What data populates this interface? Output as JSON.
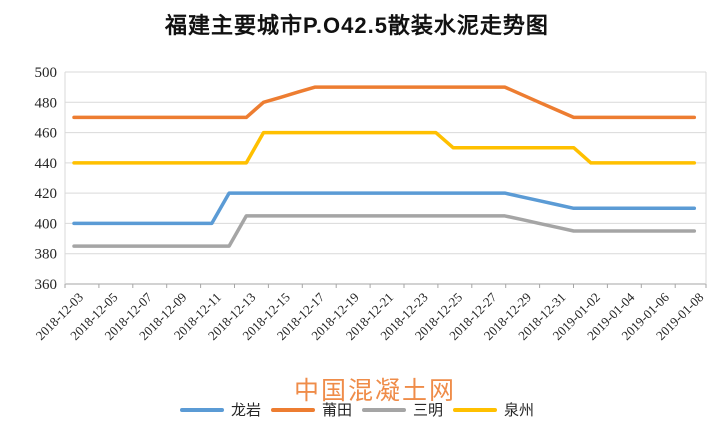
{
  "title": "福建主要城市P.O42.5散装水泥走势图",
  "watermark": "中国混凝土网",
  "chart_data": {
    "type": "line",
    "title": "福建主要城市P.O42.5散装水泥走势图",
    "xlabel": "",
    "ylabel": "",
    "ylim": [
      360,
      500
    ],
    "ytick_step": 20,
    "grid": "horizontal",
    "legend_position": "bottom",
    "x_labels": [
      "2018-12-03",
      "2018-12-05",
      "2018-12-07",
      "2018-12-09",
      "2018-12-11",
      "2018-12-13",
      "2018-12-15",
      "2018-12-17",
      "2018-12-19",
      "2018-12-21",
      "2018-12-23",
      "2018-12-25",
      "2018-12-27",
      "2018-12-29",
      "2018-12-31",
      "2019-01-02",
      "2019-01-04",
      "2019-01-06",
      "2019-01-08"
    ],
    "dates": [
      "2018-12-03",
      "2018-12-04",
      "2018-12-05",
      "2018-12-06",
      "2018-12-07",
      "2018-12-08",
      "2018-12-09",
      "2018-12-10",
      "2018-12-11",
      "2018-12-12",
      "2018-12-13",
      "2018-12-14",
      "2018-12-15",
      "2018-12-16",
      "2018-12-17",
      "2018-12-18",
      "2018-12-19",
      "2018-12-20",
      "2018-12-21",
      "2018-12-22",
      "2018-12-23",
      "2018-12-24",
      "2018-12-25",
      "2018-12-26",
      "2018-12-27",
      "2018-12-28",
      "2018-12-29",
      "2018-12-30",
      "2018-12-31",
      "2019-01-01",
      "2019-01-02",
      "2019-01-03",
      "2019-01-04",
      "2019-01-05",
      "2019-01-06",
      "2019-01-07",
      "2019-01-08"
    ],
    "series": [
      {
        "name": "龙岩",
        "color": "#5B9BD5",
        "values": [
          400,
          400,
          400,
          400,
          400,
          400,
          400,
          400,
          400,
          420,
          420,
          420,
          420,
          420,
          420,
          420,
          420,
          420,
          420,
          420,
          420,
          420,
          420,
          420,
          420,
          420,
          417.5,
          415,
          412.5,
          410,
          410,
          410,
          410,
          410,
          410,
          410,
          410
        ]
      },
      {
        "name": "莆田",
        "color": "#ED7D31",
        "values": [
          470,
          470,
          470,
          470,
          470,
          470,
          470,
          470,
          470,
          470,
          470,
          480,
          483.3,
          486.7,
          490,
          490,
          490,
          490,
          490,
          490,
          490,
          490,
          490,
          490,
          490,
          490,
          485,
          480,
          475,
          470,
          470,
          470,
          470,
          470,
          470,
          470,
          470
        ]
      },
      {
        "name": "三明",
        "color": "#A5A5A5",
        "values": [
          385,
          385,
          385,
          385,
          385,
          385,
          385,
          385,
          385,
          385,
          405,
          405,
          405,
          405,
          405,
          405,
          405,
          405,
          405,
          405,
          405,
          405,
          405,
          405,
          405,
          405,
          402.5,
          400,
          397.5,
          395,
          395,
          395,
          395,
          395,
          395,
          395,
          395
        ]
      },
      {
        "name": "泉州",
        "color": "#FFC000",
        "values": [
          440,
          440,
          440,
          440,
          440,
          440,
          440,
          440,
          440,
          440,
          440,
          460,
          460,
          460,
          460,
          460,
          460,
          460,
          460,
          460,
          460,
          460,
          450,
          450,
          450,
          450,
          450,
          450,
          450,
          450,
          440,
          440,
          440,
          440,
          440,
          440,
          440
        ]
      }
    ]
  }
}
